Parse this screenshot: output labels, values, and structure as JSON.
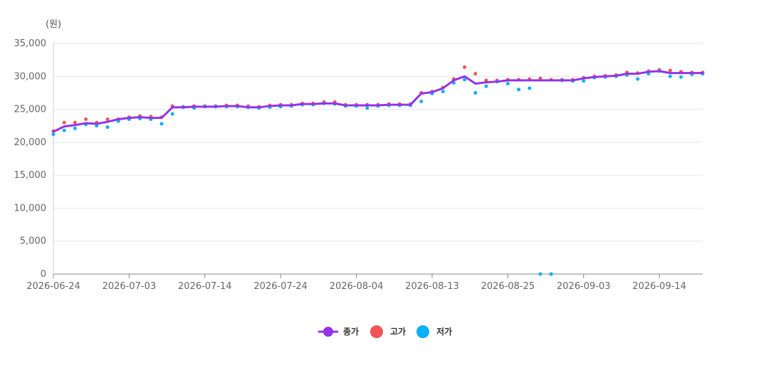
{
  "chart_data": {
    "type": "line",
    "unit_label": "(원)",
    "y_ticks": [
      "0",
      "5,000",
      "10,000",
      "15,000",
      "20,000",
      "25,000",
      "30,000",
      "35,000"
    ],
    "ylim": [
      0,
      35000
    ],
    "x_tick_labels": [
      "2026-06-24",
      "2026-07-03",
      "2026-07-14",
      "2026-07-24",
      "2026-08-04",
      "2026-08-13",
      "2026-08-25",
      "2026-09-03",
      "2026-09-14"
    ],
    "x_tick_index": [
      0,
      7,
      14,
      21,
      28,
      35,
      42,
      49,
      56
    ],
    "grid": true,
    "legend_position": "bottom",
    "series": [
      {
        "name": "종가",
        "kind": "line",
        "color": "#9333ea",
        "values": [
          21600,
          22400,
          22600,
          22900,
          22800,
          23100,
          23500,
          23700,
          23800,
          23700,
          23700,
          25300,
          25300,
          25400,
          25400,
          25400,
          25500,
          25500,
          25300,
          25300,
          25500,
          25600,
          25600,
          25800,
          25800,
          25900,
          25900,
          25600,
          25600,
          25600,
          25600,
          25700,
          25700,
          25700,
          27400,
          27600,
          28200,
          29400,
          30000,
          28900,
          29100,
          29200,
          29400,
          29400,
          29400,
          29400,
          29400,
          29400,
          29400,
          29700,
          29900,
          30000,
          30100,
          30400,
          30400,
          30700,
          30800,
          30500,
          30500,
          30500,
          30500
        ]
      },
      {
        "name": "고가",
        "kind": "points",
        "color": "#f05454",
        "values": [
          21700,
          23000,
          23000,
          23500,
          23000,
          23500,
          23500,
          23800,
          24000,
          23900,
          23800,
          25500,
          25400,
          25500,
          25500,
          25500,
          25600,
          25600,
          25500,
          25400,
          25600,
          25700,
          25700,
          25900,
          25900,
          26100,
          26100,
          25700,
          25700,
          25700,
          25700,
          25800,
          25800,
          25800,
          27500,
          27700,
          28300,
          29600,
          31400,
          30400,
          29400,
          29400,
          29500,
          29500,
          29600,
          29700,
          29500,
          29500,
          29500,
          29800,
          30000,
          30100,
          30200,
          30600,
          30500,
          30800,
          31000,
          30900,
          30700,
          30600,
          30600
        ]
      },
      {
        "name": "저가",
        "kind": "points",
        "color": "#0ab0f5",
        "values": [
          21200,
          21800,
          22100,
          22700,
          22500,
          22300,
          23200,
          23500,
          23600,
          23500,
          22800,
          24300,
          25300,
          25200,
          25400,
          25400,
          25400,
          25400,
          25300,
          25200,
          25300,
          25400,
          25500,
          25700,
          25700,
          25900,
          25800,
          25500,
          25500,
          25200,
          25500,
          25600,
          25600,
          25600,
          26200,
          27400,
          27700,
          29000,
          29500,
          27500,
          28500,
          29200,
          28900,
          28000,
          28200,
          0,
          0,
          29400,
          29300,
          29300,
          29800,
          29900,
          30000,
          30200,
          29600,
          30400,
          30800,
          30000,
          29900,
          30300,
          30400
        ]
      }
    ]
  }
}
